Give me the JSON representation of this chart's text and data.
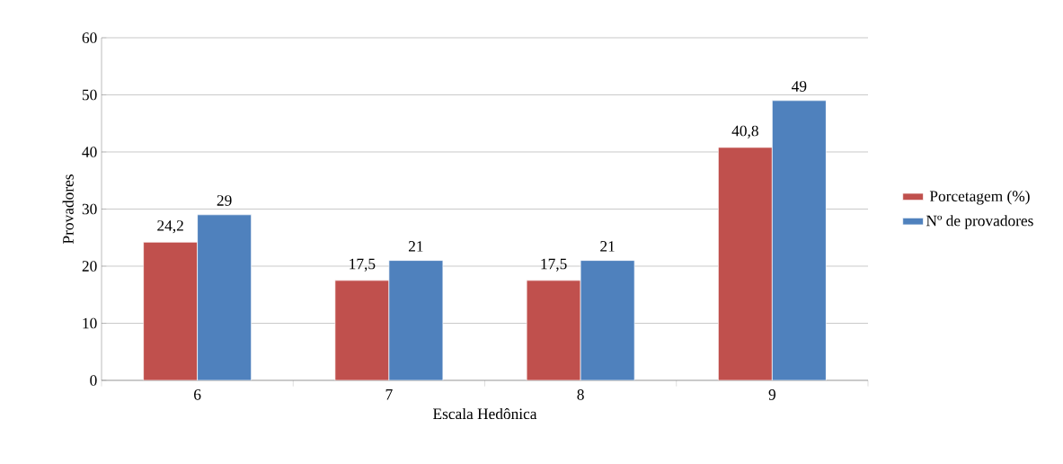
{
  "chart_data": {
    "type": "bar",
    "xlabel": "Escala Hedônica",
    "ylabel": "Provadores",
    "categories": [
      "6",
      "7",
      "8",
      "9"
    ],
    "series": [
      {
        "name": "Porcetagem (%)",
        "color": "#c0504d",
        "values": [
          24.2,
          17.5,
          17.5,
          40.8
        ],
        "value_labels": [
          "24,2",
          "17,5",
          "17,5",
          "40,8"
        ]
      },
      {
        "name": "Nº de provadores",
        "color": "#4f81bd",
        "values": [
          29,
          21,
          21,
          49
        ],
        "value_labels": [
          "29",
          "21",
          "21",
          "49"
        ]
      }
    ],
    "ylim": [
      0,
      60
    ],
    "yticks": [
      0,
      10,
      20,
      30,
      40,
      50,
      60
    ],
    "grid": "y",
    "legend": "right"
  }
}
